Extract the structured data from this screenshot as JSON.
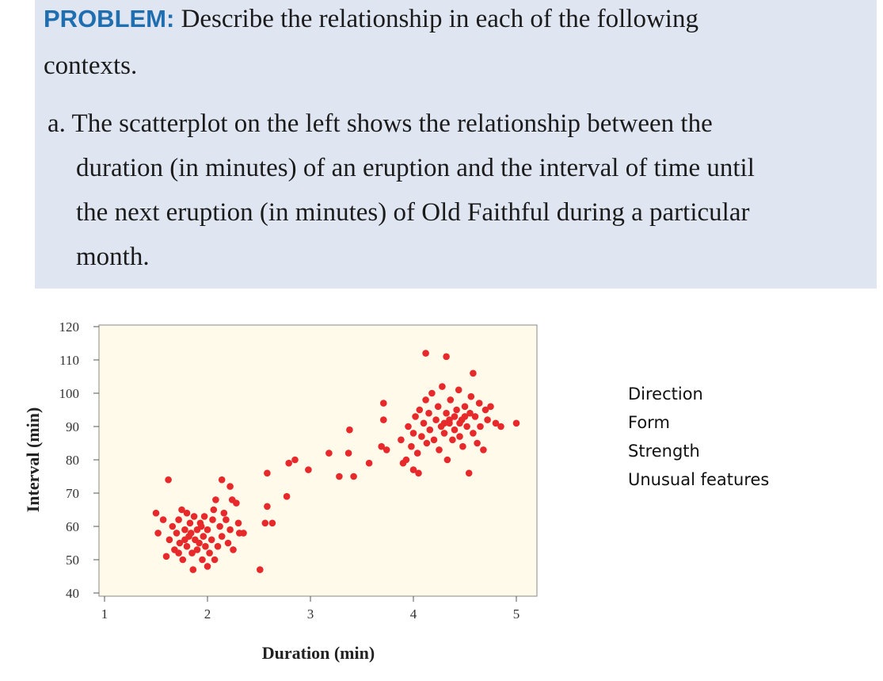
{
  "problem": {
    "heading": "PROBLEM:",
    "intro_line1": "Describe the relationship in each of the following",
    "intro_line2": "contexts.",
    "part_a_line1": "a. The scatterplot on the left shows the relationship between the",
    "part_a_line2": "duration (in minutes) of an eruption and the interval of time until",
    "part_a_line3": "the next eruption (in minutes) of Old Faithful during a particular",
    "part_a_line4": "month."
  },
  "side_labels": [
    "Direction",
    "Form",
    "Strength",
    "Unusual features"
  ],
  "colors": {
    "box": "#dfe6f2",
    "heading": "#1f6eb0",
    "plot_bg": "#fffaea",
    "point": "#e8292b"
  },
  "chart_data": {
    "type": "scatter",
    "title": "",
    "xlabel": "Duration (min)",
    "ylabel": "Interval (min)",
    "xlim": [
      1,
      5
    ],
    "ylim": [
      40,
      120
    ],
    "xticks": [
      "1",
      "2",
      "3",
      "4",
      "5"
    ],
    "yticks": [
      "40",
      "50",
      "60",
      "70",
      "80",
      "90",
      "100",
      "110",
      "120"
    ],
    "grid": false,
    "points": [
      [
        1.5,
        64
      ],
      [
        1.52,
        58
      ],
      [
        1.57,
        62
      ],
      [
        1.6,
        51
      ],
      [
        1.63,
        56
      ],
      [
        1.66,
        60
      ],
      [
        1.68,
        53
      ],
      [
        1.7,
        58
      ],
      [
        1.72,
        62
      ],
      [
        1.73,
        55
      ],
      [
        1.75,
        65
      ],
      [
        1.76,
        50
      ],
      [
        1.78,
        59
      ],
      [
        1.8,
        64
      ],
      [
        1.8,
        54
      ],
      [
        1.82,
        57
      ],
      [
        1.83,
        61
      ],
      [
        1.85,
        52
      ],
      [
        1.86,
        47
      ],
      [
        1.87,
        63
      ],
      [
        1.88,
        56
      ],
      [
        1.9,
        59
      ],
      [
        1.9,
        53
      ],
      [
        1.92,
        55
      ],
      [
        1.93,
        61
      ],
      [
        1.95,
        50
      ],
      [
        1.96,
        57
      ],
      [
        1.97,
        63
      ],
      [
        1.98,
        54
      ],
      [
        2.0,
        48
      ],
      [
        2.0,
        59
      ],
      [
        2.02,
        52
      ],
      [
        2.04,
        56
      ],
      [
        2.05,
        62
      ],
      [
        2.06,
        65
      ],
      [
        2.07,
        50
      ],
      [
        2.08,
        68
      ],
      [
        2.1,
        54
      ],
      [
        2.12,
        60
      ],
      [
        2.14,
        57
      ],
      [
        2.16,
        64
      ],
      [
        2.18,
        62
      ],
      [
        2.2,
        55
      ],
      [
        2.22,
        59
      ],
      [
        2.24,
        68
      ],
      [
        2.25,
        53
      ],
      [
        2.28,
        67
      ],
      [
        2.3,
        61
      ],
      [
        1.62,
        74
      ],
      [
        2.14,
        74
      ],
      [
        2.22,
        72
      ],
      [
        2.31,
        58
      ],
      [
        1.78,
        56
      ],
      [
        1.84,
        58
      ],
      [
        1.94,
        60
      ],
      [
        1.72,
        52
      ],
      [
        2.51,
        47
      ],
      [
        2.58,
        76
      ],
      [
        2.58,
        66
      ],
      [
        2.63,
        61
      ],
      [
        2.56,
        61
      ],
      [
        2.35,
        58
      ],
      [
        2.77,
        69
      ],
      [
        2.79,
        79
      ],
      [
        2.85,
        80
      ],
      [
        2.98,
        77
      ],
      [
        3.18,
        82
      ],
      [
        3.37,
        82
      ],
      [
        3.38,
        89
      ],
      [
        3.28,
        75
      ],
      [
        3.42,
        75
      ],
      [
        3.57,
        79
      ],
      [
        3.71,
        97
      ],
      [
        3.71,
        92
      ],
      [
        3.69,
        84
      ],
      [
        3.74,
        83
      ],
      [
        3.88,
        86
      ],
      [
        3.9,
        79
      ],
      [
        3.93,
        80
      ],
      [
        3.95,
        90
      ],
      [
        3.98,
        84
      ],
      [
        4.0,
        88
      ],
      [
        4.0,
        77
      ],
      [
        4.02,
        93
      ],
      [
        4.04,
        82
      ],
      [
        4.05,
        76
      ],
      [
        4.06,
        95
      ],
      [
        4.08,
        87
      ],
      [
        4.1,
        91
      ],
      [
        4.12,
        98
      ],
      [
        4.13,
        85
      ],
      [
        4.15,
        94
      ],
      [
        4.16,
        89
      ],
      [
        4.18,
        100
      ],
      [
        4.2,
        86
      ],
      [
        4.22,
        92
      ],
      [
        4.24,
        96
      ],
      [
        4.25,
        83
      ],
      [
        4.27,
        90
      ],
      [
        4.28,
        102
      ],
      [
        4.3,
        88
      ],
      [
        4.32,
        94
      ],
      [
        4.33,
        80
      ],
      [
        4.35,
        91
      ],
      [
        4.36,
        98
      ],
      [
        4.38,
        86
      ],
      [
        4.4,
        93
      ],
      [
        4.4,
        89
      ],
      [
        4.42,
        95
      ],
      [
        4.44,
        101
      ],
      [
        4.45,
        87
      ],
      [
        4.47,
        92
      ],
      [
        4.48,
        84
      ],
      [
        4.5,
        96
      ],
      [
        4.52,
        90
      ],
      [
        4.54,
        76
      ],
      [
        4.55,
        94
      ],
      [
        4.56,
        99
      ],
      [
        4.58,
        88
      ],
      [
        4.6,
        93
      ],
      [
        4.62,
        85
      ],
      [
        4.64,
        97
      ],
      [
        4.65,
        90
      ],
      [
        4.68,
        83
      ],
      [
        4.7,
        95
      ],
      [
        4.72,
        92
      ],
      [
        4.75,
        96
      ],
      [
        4.8,
        91
      ],
      [
        4.85,
        90
      ],
      [
        4.35,
        92
      ],
      [
        4.45,
        91
      ],
      [
        4.5,
        93
      ],
      [
        4.3,
        91
      ],
      [
        4.12,
        112
      ],
      [
        4.32,
        111
      ],
      [
        4.58,
        106
      ],
      [
        5.0,
        91
      ]
    ]
  }
}
